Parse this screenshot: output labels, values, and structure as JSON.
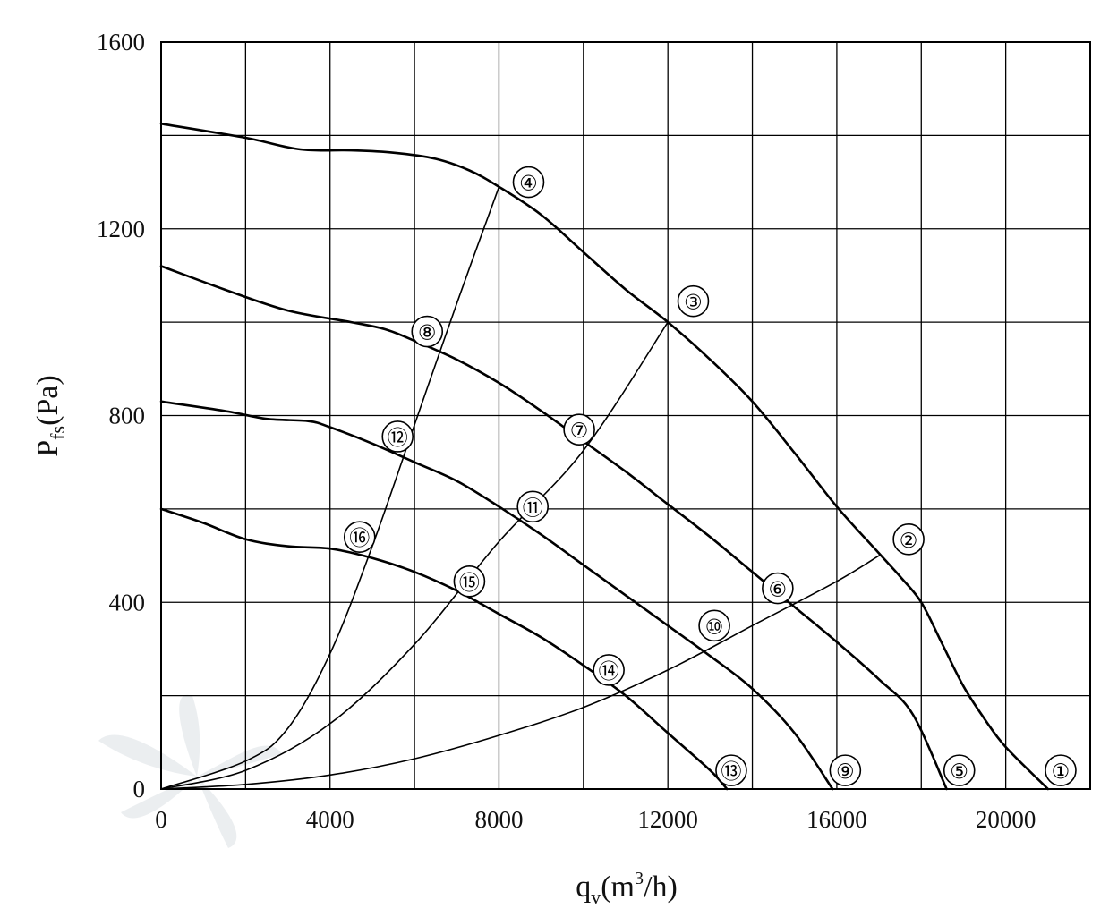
{
  "chart_data": {
    "type": "line",
    "xlabel": {
      "main": "q",
      "sub": "v",
      "unit_pre": "(m",
      "unit_sup": "3",
      "unit_post": "/h)"
    },
    "ylabel": {
      "main": "P",
      "sub": "fs",
      "unit": "(Pa)"
    },
    "xlim": [
      0,
      22000
    ],
    "ylim": [
      0,
      1600
    ],
    "x_ticks": [
      0,
      4000,
      8000,
      12000,
      16000,
      20000
    ],
    "y_ticks": [
      0,
      400,
      800,
      1200,
      1600
    ],
    "x_tick_labels": [
      "0",
      "4000",
      "8000",
      "12000",
      "16000",
      "20000"
    ],
    "y_tick_labels": [
      "0",
      "400",
      "800",
      "1200",
      "1600"
    ],
    "grid": true,
    "fan_curves": [
      {
        "points": [
          [
            0,
            1425
          ],
          [
            2000,
            1395
          ],
          [
            3300,
            1370
          ],
          [
            4500,
            1368
          ],
          [
            5500,
            1363
          ],
          [
            6500,
            1350
          ],
          [
            7300,
            1325
          ],
          [
            8000,
            1290
          ],
          [
            9000,
            1230
          ],
          [
            10000,
            1150
          ],
          [
            11000,
            1070
          ],
          [
            12000,
            1000
          ],
          [
            13000,
            920
          ],
          [
            14000,
            830
          ],
          [
            15000,
            720
          ],
          [
            16000,
            605
          ],
          [
            17000,
            505
          ],
          [
            17500,
            455
          ],
          [
            18000,
            400
          ],
          [
            18500,
            310
          ],
          [
            19000,
            220
          ],
          [
            19500,
            150
          ],
          [
            20000,
            90
          ],
          [
            21000,
            0
          ]
        ]
      },
      {
        "points": [
          [
            0,
            1120
          ],
          [
            1500,
            1070
          ],
          [
            3000,
            1025
          ],
          [
            4500,
            1000
          ],
          [
            5300,
            985
          ],
          [
            6000,
            960
          ],
          [
            7000,
            920
          ],
          [
            8000,
            870
          ],
          [
            9000,
            810
          ],
          [
            10000,
            745
          ],
          [
            11000,
            680
          ],
          [
            12000,
            610
          ],
          [
            13000,
            540
          ],
          [
            14000,
            465
          ],
          [
            15000,
            390
          ],
          [
            16000,
            315
          ],
          [
            17000,
            235
          ],
          [
            17800,
            160
          ],
          [
            18600,
            0
          ]
        ]
      },
      {
        "points": [
          [
            0,
            830
          ],
          [
            1500,
            810
          ],
          [
            2500,
            793
          ],
          [
            3500,
            788
          ],
          [
            4000,
            775
          ],
          [
            5000,
            740
          ],
          [
            6000,
            700
          ],
          [
            7000,
            660
          ],
          [
            8000,
            605
          ],
          [
            9000,
            545
          ],
          [
            10000,
            480
          ],
          [
            11000,
            415
          ],
          [
            12000,
            350
          ],
          [
            13000,
            285
          ],
          [
            14000,
            215
          ],
          [
            15000,
            120
          ],
          [
            15900,
            0
          ]
        ]
      },
      {
        "points": [
          [
            0,
            600
          ],
          [
            1000,
            570
          ],
          [
            2000,
            535
          ],
          [
            3000,
            520
          ],
          [
            4000,
            515
          ],
          [
            5000,
            495
          ],
          [
            6000,
            465
          ],
          [
            7000,
            425
          ],
          [
            8000,
            375
          ],
          [
            9000,
            325
          ],
          [
            10000,
            265
          ],
          [
            11000,
            200
          ],
          [
            12000,
            120
          ],
          [
            13000,
            40
          ],
          [
            13400,
            0
          ]
        ]
      }
    ],
    "system_curves": [
      {
        "points": [
          [
            0,
            0
          ],
          [
            2000,
            60
          ],
          [
            3000,
            130
          ],
          [
            4000,
            290
          ],
          [
            5000,
            520
          ],
          [
            6000,
            780
          ],
          [
            7000,
            1040
          ],
          [
            8000,
            1290
          ]
        ]
      },
      {
        "points": [
          [
            0,
            0
          ],
          [
            2000,
            40
          ],
          [
            4000,
            140
          ],
          [
            6000,
            310
          ],
          [
            8000,
            530
          ],
          [
            10000,
            725
          ],
          [
            12000,
            1000
          ]
        ]
      },
      {
        "points": [
          [
            0,
            0
          ],
          [
            2000,
            10
          ],
          [
            4000,
            30
          ],
          [
            6000,
            65
          ],
          [
            8000,
            115
          ],
          [
            10000,
            175
          ],
          [
            12000,
            255
          ],
          [
            14000,
            350
          ],
          [
            16000,
            445
          ],
          [
            17000,
            500
          ]
        ]
      }
    ],
    "markers": [
      {
        "label": "①",
        "x": 21300,
        "y": 40
      },
      {
        "label": "②",
        "x": 17700,
        "y": 535
      },
      {
        "label": "③",
        "x": 12600,
        "y": 1045
      },
      {
        "label": "④",
        "x": 8700,
        "y": 1300
      },
      {
        "label": "⑤",
        "x": 18900,
        "y": 40
      },
      {
        "label": "⑥",
        "x": 14600,
        "y": 430
      },
      {
        "label": "⑦",
        "x": 9900,
        "y": 770
      },
      {
        "label": "⑧",
        "x": 6300,
        "y": 980
      },
      {
        "label": "⑨",
        "x": 16200,
        "y": 40
      },
      {
        "label": "⑩",
        "x": 13100,
        "y": 350
      },
      {
        "label": "⑪",
        "x": 8800,
        "y": 605
      },
      {
        "label": "⑫",
        "x": 5600,
        "y": 755
      },
      {
        "label": "⑬",
        "x": 13500,
        "y": 40
      },
      {
        "label": "⑭",
        "x": 10600,
        "y": 255
      },
      {
        "label": "⑮",
        "x": 7300,
        "y": 445
      },
      {
        "label": "⑯",
        "x": 4700,
        "y": 540
      }
    ]
  }
}
